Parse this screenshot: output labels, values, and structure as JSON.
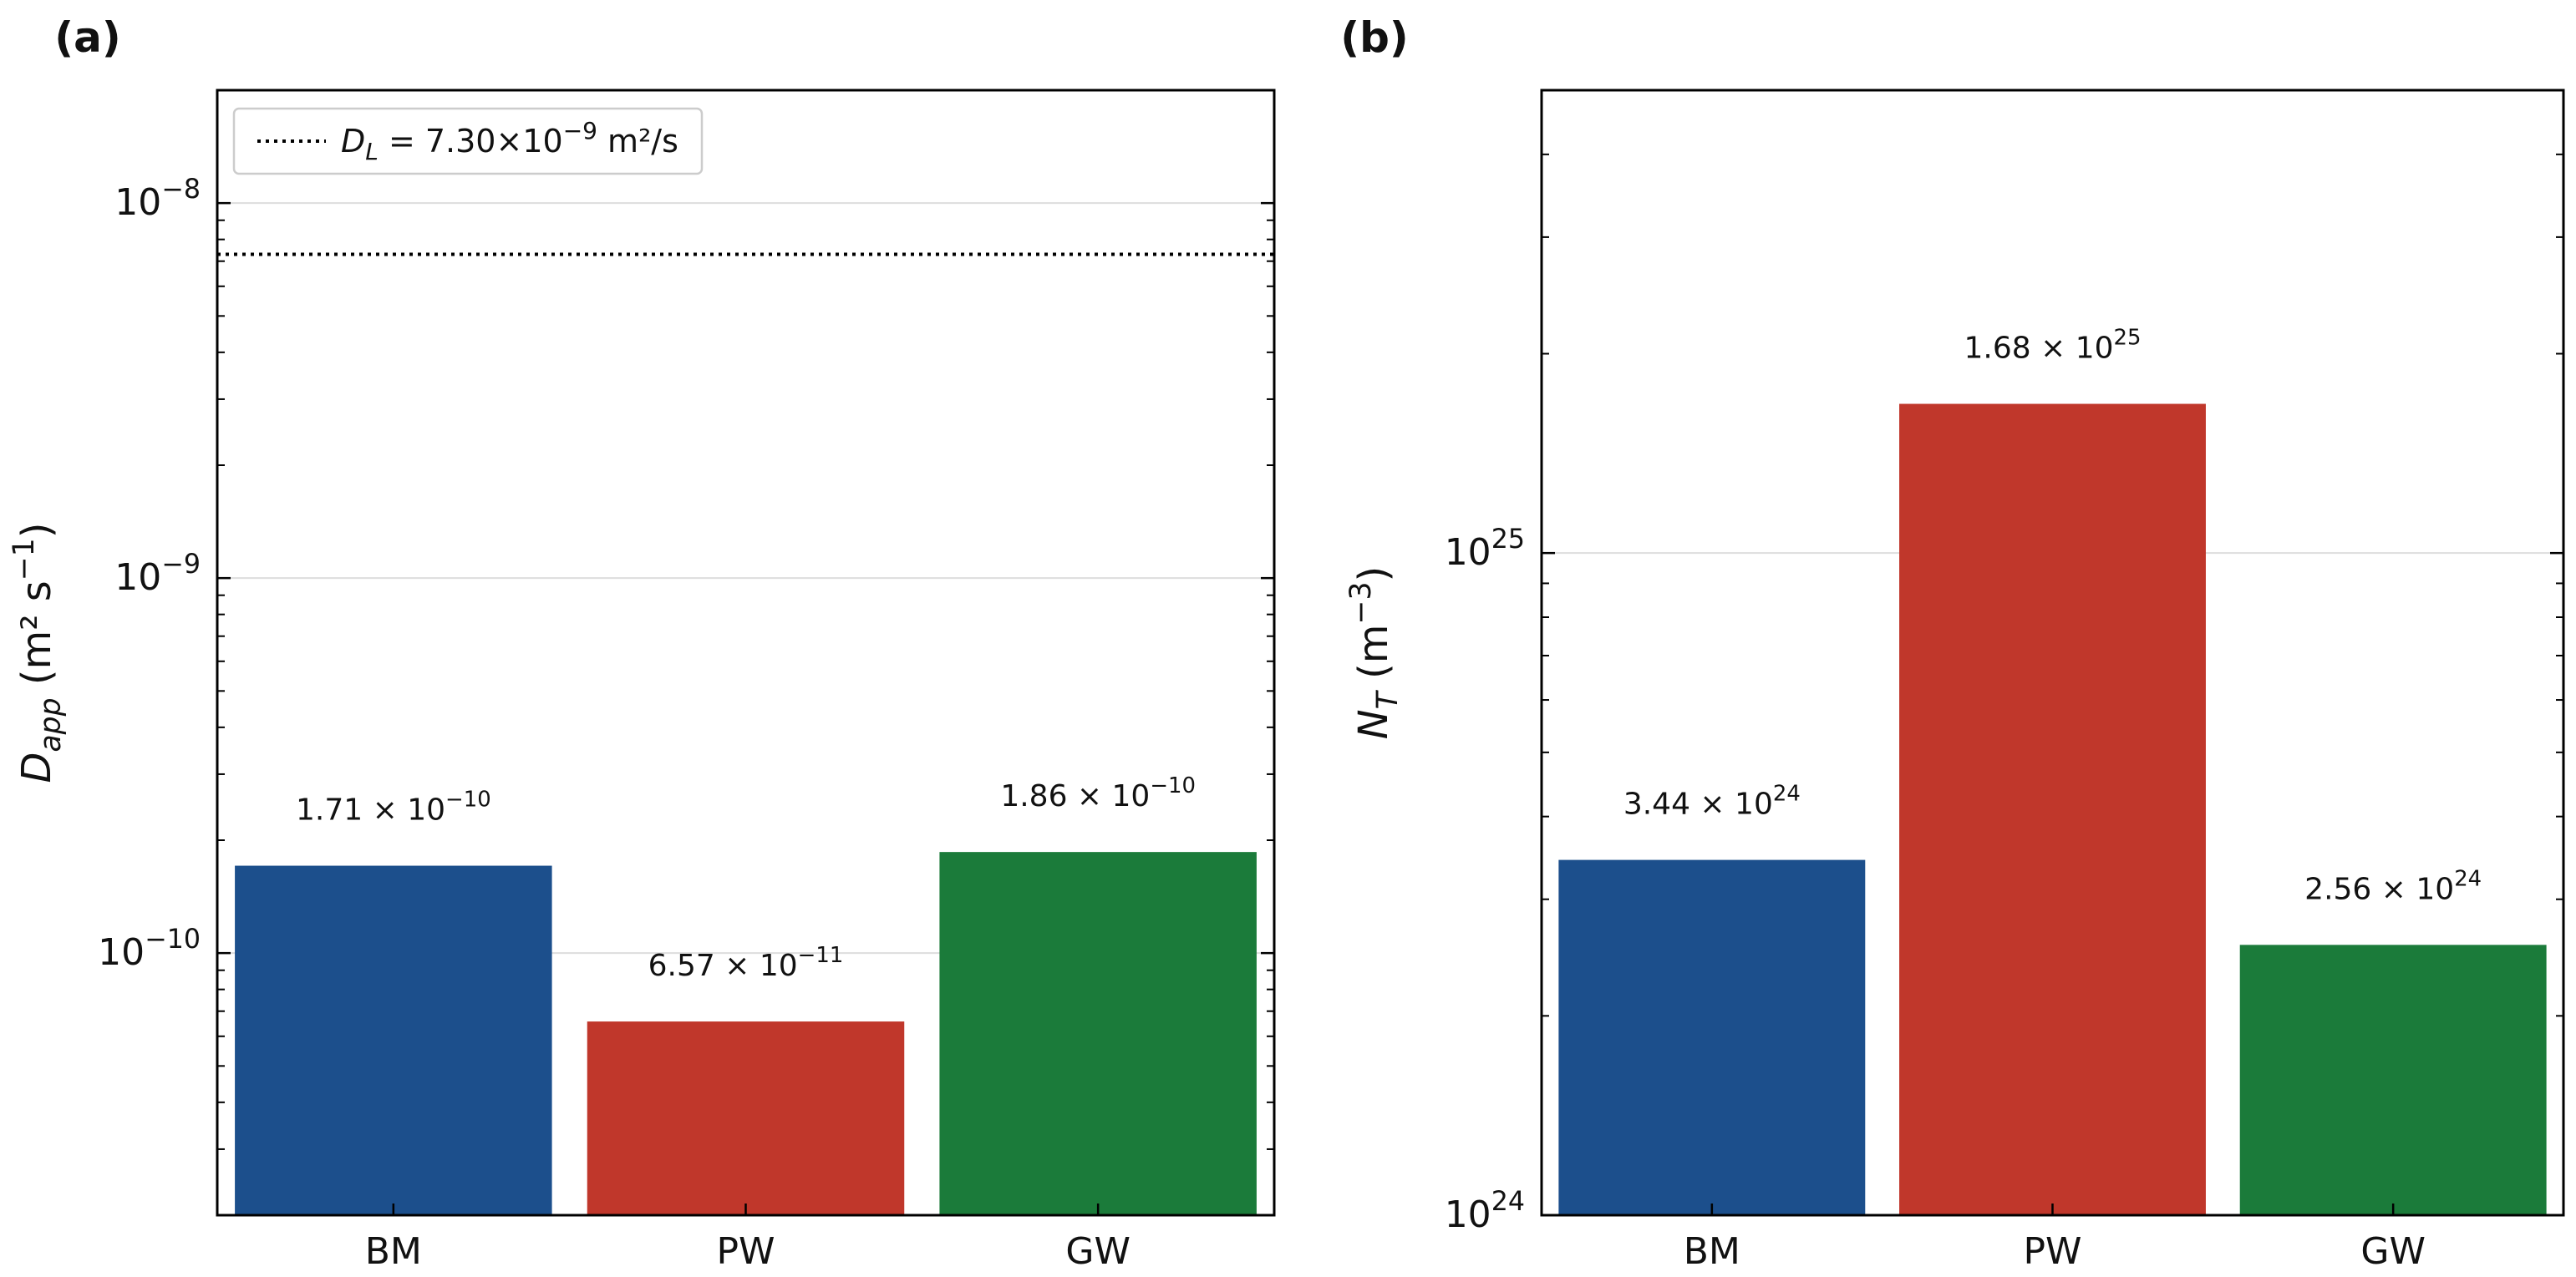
{
  "chart_data": [
    {
      "panel_label": "(a)",
      "type": "bar",
      "y_scale": "log",
      "ylim": [
        2e-11,
        2e-08
      ],
      "categories": [
        "BM",
        "PW",
        "GW"
      ],
      "values": [
        1.71e-10,
        6.57e-11,
        1.86e-10
      ],
      "bar_colors": [
        "#1c4f8c",
        "#c0372b",
        "#1b7b3a"
      ],
      "data_labels": [
        {
          "mant": "1.71 × 10",
          "exp": "−10"
        },
        {
          "mant": "6.57 × 10",
          "exp": "−11"
        },
        {
          "mant": "1.86 × 10",
          "exp": "−10"
        }
      ],
      "ylabel": {
        "main": "D",
        "sub": "app",
        "unit": "  (m² s",
        "unit_exp": "−1",
        "unit_close": ")"
      },
      "yticks": [
        {
          "value": 1e-10,
          "base": "10",
          "exp": "−10"
        },
        {
          "value": 1e-09,
          "base": "10",
          "exp": "−9"
        },
        {
          "value": 1e-08,
          "base": "10",
          "exp": "−8"
        }
      ],
      "grid": true,
      "reference_line": {
        "value": 7.3e-09,
        "style": "dotted",
        "color": "#000000"
      },
      "legend": {
        "placement": "top-left",
        "sym": "D",
        "sub": "L",
        "text_a": " = 7.30×10",
        "exp": "−9",
        "text_b": " m²/s"
      }
    },
    {
      "panel_label": "(b)",
      "type": "bar",
      "y_scale": "log",
      "ylim": [
        1e+24,
        5e+25
      ],
      "categories": [
        "BM",
        "PW",
        "GW"
      ],
      "values": [
        3.44e+24,
        1.68e+25,
        2.56e+24
      ],
      "bar_colors": [
        "#1c4f8c",
        "#c0372b",
        "#1b7b3a"
      ],
      "data_labels": [
        {
          "mant": "3.44 × 10",
          "exp": "24"
        },
        {
          "mant": "1.68 × 10",
          "exp": "25"
        },
        {
          "mant": "2.56 × 10",
          "exp": "24"
        }
      ],
      "ylabel": {
        "main": "N",
        "sub": "T",
        "unit": "  (m",
        "unit_exp": "−3",
        "unit_close": ")"
      },
      "yticks": [
        {
          "value": 1e+24,
          "base": "10",
          "exp": "24"
        },
        {
          "value": 1e+25,
          "base": "10",
          "exp": "25"
        }
      ],
      "grid": true
    }
  ]
}
